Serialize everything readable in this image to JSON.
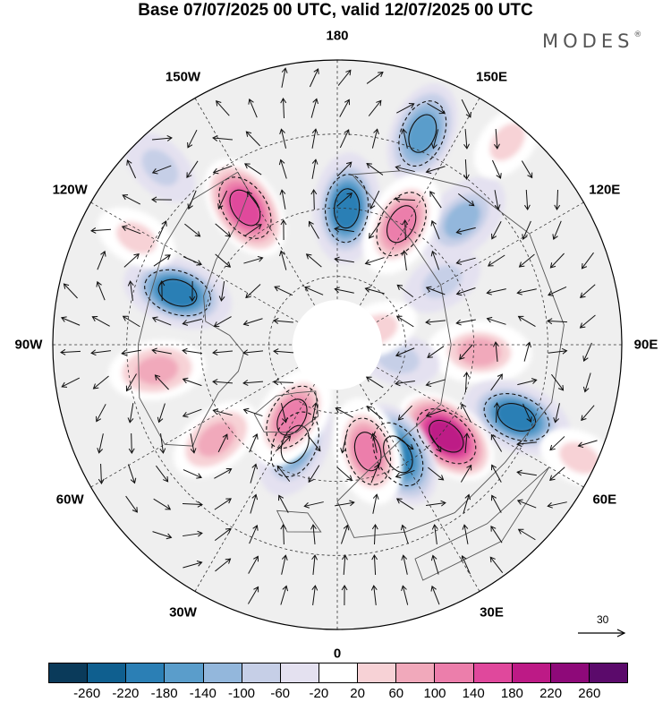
{
  "title": "Base 07/07/2025 00 UTC, valid 12/07/2025 00 UTC",
  "brand": {
    "name": "MODES",
    "mark": "®"
  },
  "map": {
    "projection": "north-polar-stereographic",
    "longitude_labels": [
      {
        "text": "180",
        "lon": 180
      },
      {
        "text": "150E",
        "lon": 150
      },
      {
        "text": "120E",
        "lon": 120
      },
      {
        "text": "90E",
        "lon": 90
      },
      {
        "text": "60E",
        "lon": 60
      },
      {
        "text": "30E",
        "lon": 30
      },
      {
        "text": "0",
        "lon": 0
      },
      {
        "text": "30W",
        "lon": -30
      },
      {
        "text": "60W",
        "lon": -60
      },
      {
        "text": "90W",
        "lon": -90
      },
      {
        "text": "120W",
        "lon": -120
      },
      {
        "text": "150W",
        "lon": -150
      }
    ],
    "vector_reference": {
      "value": "30"
    },
    "anomalies": [
      {
        "lon": 176,
        "r": 0.48,
        "value": -200
      },
      {
        "lon": 158,
        "r": 0.8,
        "value": -140
      },
      {
        "lon": 135,
        "r": 0.62,
        "value": -110
      },
      {
        "lon": 152,
        "r": 0.48,
        "value": 150
      },
      {
        "lon": 121,
        "r": 0.43,
        "value": -60
      },
      {
        "lon": 87,
        "r": 0.5,
        "value": 110
      },
      {
        "lon": 77,
        "r": 0.22,
        "value": -60
      },
      {
        "lon": 111,
        "r": 0.15,
        "value": 40
      },
      {
        "lon": 68,
        "r": 0.68,
        "value": -200
      },
      {
        "lon": 50,
        "r": 0.5,
        "value": 200
      },
      {
        "lon": 29,
        "r": 0.44,
        "value": -180
      },
      {
        "lon": 16,
        "r": 0.39,
        "value": 150
      },
      {
        "lon": -23,
        "r": 0.38,
        "value": -160
      },
      {
        "lon": -32,
        "r": 0.3,
        "value": 150
      },
      {
        "lon": -52,
        "r": 0.54,
        "value": 80
      },
      {
        "lon": -82,
        "r": 0.64,
        "value": 80
      },
      {
        "lon": -108,
        "r": 0.59,
        "value": -200
      },
      {
        "lon": -146,
        "r": 0.58,
        "value": 170
      },
      {
        "lon": -118,
        "r": 0.8,
        "value": 60
      },
      {
        "lon": -135,
        "r": 0.88,
        "value": -60
      },
      {
        "lon": 65,
        "r": 0.94,
        "value": 40
      },
      {
        "lon": 140,
        "r": 0.93,
        "value": 40
      }
    ]
  },
  "colorbar": {
    "colors": [
      "#0a3a5a",
      "#0f5f8f",
      "#2b7fb5",
      "#5a9dcb",
      "#93b7dc",
      "#c6cfe7",
      "#e4e1f0",
      "#ffffff",
      "#f7d2d6",
      "#f1a9bb",
      "#ec7eab",
      "#e0489c",
      "#bd1a86",
      "#8e0979",
      "#5b0a6b"
    ],
    "ticks": [
      "-260",
      "-220",
      "-180",
      "-140",
      "-100",
      "-60",
      "-20",
      "20",
      "60",
      "100",
      "140",
      "180",
      "220",
      "260"
    ]
  }
}
